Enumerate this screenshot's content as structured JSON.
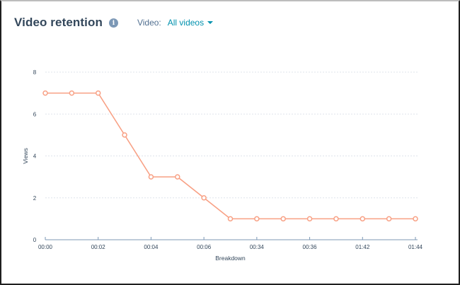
{
  "header": {
    "title": "Video retention",
    "info_icon": "info-icon",
    "filter_label": "Video:",
    "filter_value": "All videos",
    "filter_icon": "caret-down-icon"
  },
  "colors": {
    "series": "#f8a084",
    "grid": "#dfe3eb",
    "axis": "#7c98b6",
    "title": "#33475b",
    "link": "#0091ae"
  },
  "chart_data": {
    "type": "line",
    "title": "Video retention",
    "xlabel": "Breakdown",
    "ylabel": "Views",
    "ylim": [
      0,
      8
    ],
    "yticks": [
      0,
      2,
      4,
      6,
      8
    ],
    "grid": true,
    "legend": "none",
    "x_tick_labels": [
      "00:00",
      "00:02",
      "00:04",
      "00:06",
      "00:34",
      "00:36",
      "01:42",
      "01:44"
    ],
    "x_tick_indices": [
      0,
      2,
      4,
      6,
      8,
      10,
      12,
      14
    ],
    "series": [
      {
        "name": "Views",
        "values": [
          7,
          7,
          7,
          5,
          3,
          3,
          2,
          1,
          1,
          1,
          1,
          1,
          1,
          1,
          1
        ]
      }
    ]
  }
}
